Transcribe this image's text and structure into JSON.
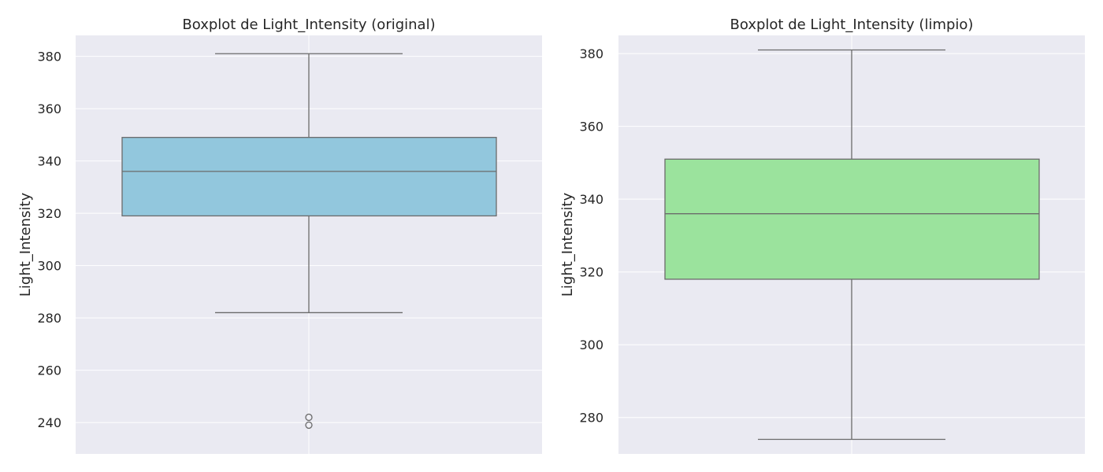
{
  "chart_data": [
    {
      "type": "boxplot",
      "title": "Boxplot de Light_Intensity (original)",
      "xlabel": "",
      "ylabel": "Light_Intensity",
      "ylim": [
        228,
        388
      ],
      "yticks": [
        240,
        260,
        280,
        300,
        320,
        340,
        360,
        380
      ],
      "grid": true,
      "box_color": "#92c7dd",
      "stats": {
        "whisker_low": 282,
        "q1": 319,
        "median": 336,
        "q3": 349,
        "whisker_high": 381
      },
      "outliers": [
        239,
        242
      ]
    },
    {
      "type": "boxplot",
      "title": "Boxplot de Light_Intensity (limpio)",
      "xlabel": "",
      "ylabel": "Light_Intensity",
      "ylim": [
        270,
        385
      ],
      "yticks": [
        280,
        300,
        320,
        340,
        360,
        380
      ],
      "grid": true,
      "box_color": "#9be39d",
      "stats": {
        "whisker_low": 274,
        "q1": 318,
        "median": 336,
        "q3": 351,
        "whisker_high": 381
      },
      "outliers": []
    }
  ],
  "style": {
    "plot_background": "#eaeaf2",
    "grid_color": "#ffffff",
    "line_color": "#6b6b6b",
    "text_color": "#262626"
  }
}
